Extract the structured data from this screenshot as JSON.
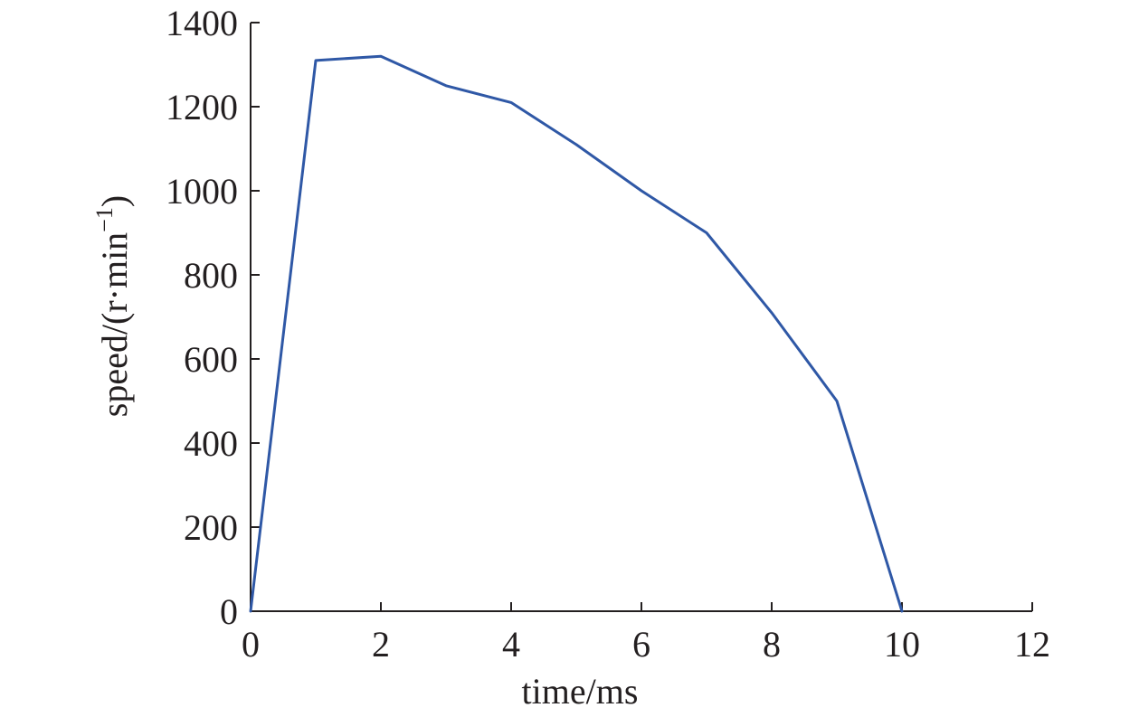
{
  "chart_data": {
    "type": "line",
    "title": "",
    "xlabel": "time/ms",
    "ylabel": "speed/(r·min",
    "ylabel_sup": "−1",
    "ylabel_close": ")",
    "xlim": [
      0,
      12
    ],
    "ylim": [
      0,
      1400
    ],
    "x_ticks": [
      0,
      2,
      4,
      6,
      8,
      10,
      12
    ],
    "y_ticks": [
      0,
      200,
      400,
      600,
      800,
      1000,
      1200,
      1400
    ],
    "grid": false,
    "legend": "none",
    "series": [
      {
        "color": "#2f58a6",
        "x": [
          0,
          1,
          2,
          3,
          4,
          5,
          6,
          7,
          8,
          9,
          10
        ],
        "y": [
          0,
          1310,
          1320,
          1250,
          1210,
          1110,
          1000,
          900,
          710,
          500,
          0
        ]
      }
    ]
  }
}
